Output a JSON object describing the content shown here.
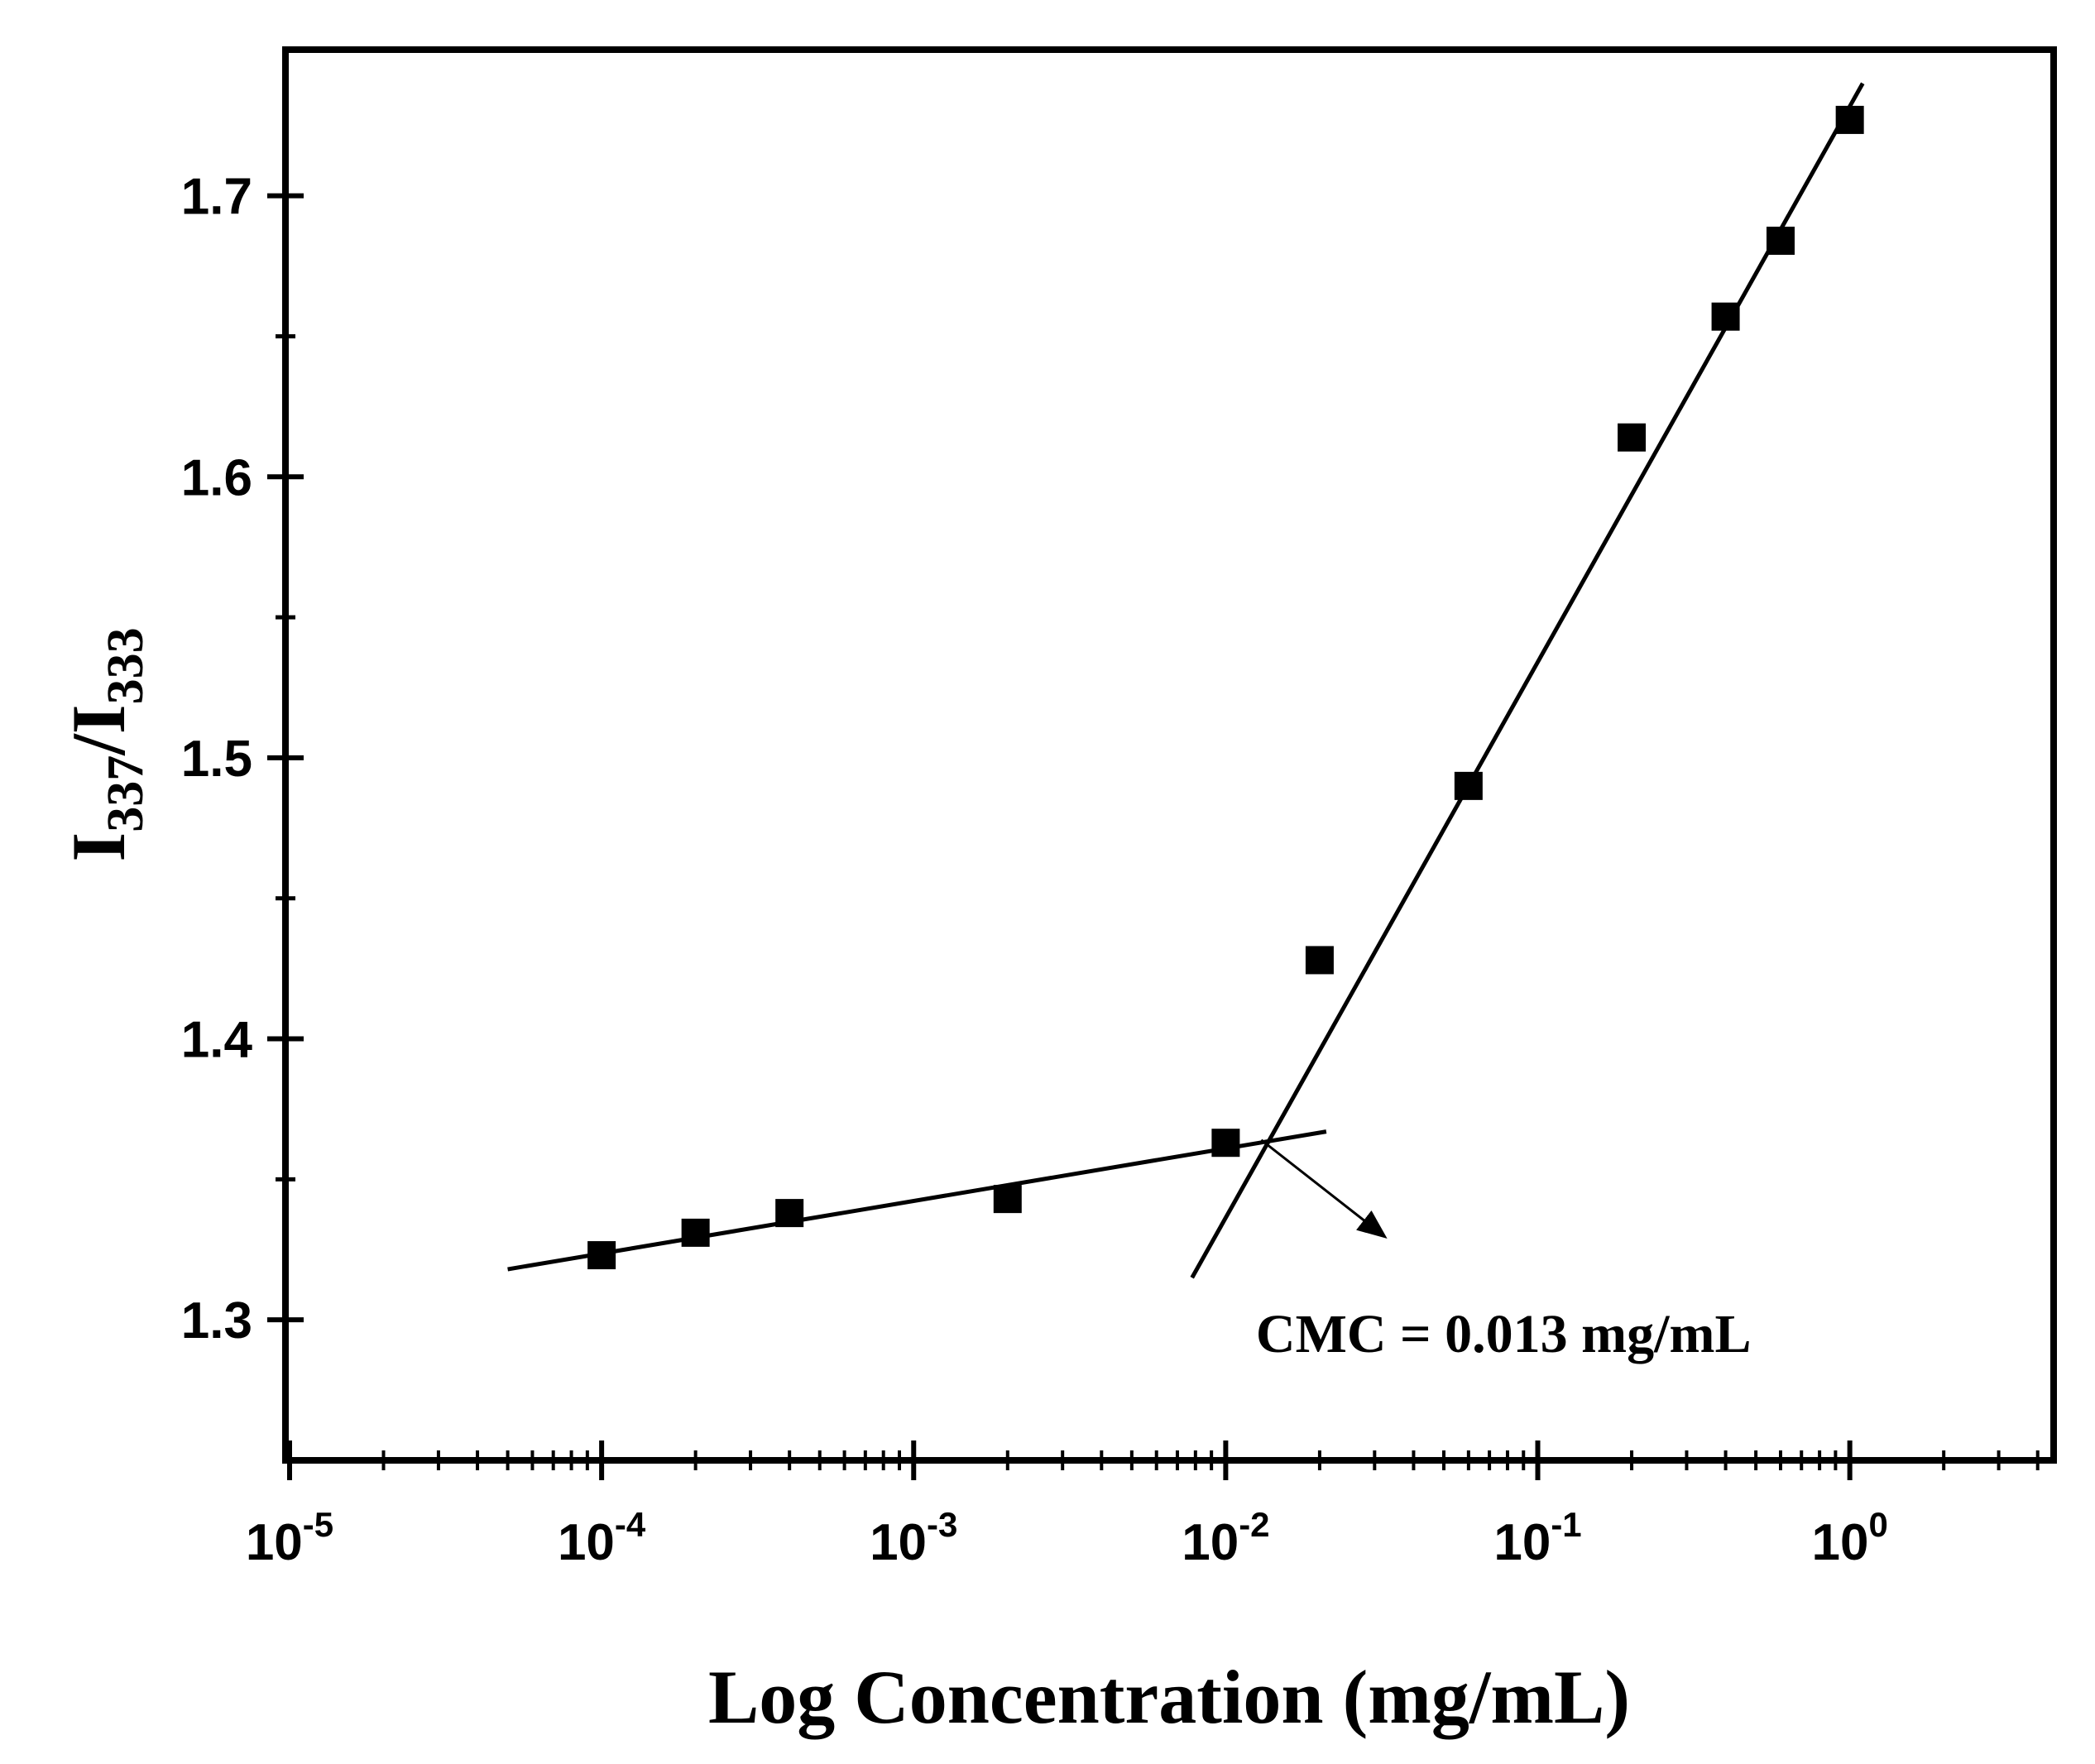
{
  "chart_data": {
    "type": "scatter",
    "xscale": "log",
    "xlim": [
      9.7e-06,
      4.5
    ],
    "ylim": [
      1.25,
      1.752
    ],
    "xlabel": "Log Concentration (mg/mL)",
    "ylabel": {
      "base": "I",
      "sub1": "337",
      "sep": "/I",
      "sub2": "333"
    },
    "xticks": [
      {
        "value": 1e-05,
        "base": "10",
        "exp": "-5"
      },
      {
        "value": 0.0001,
        "base": "10",
        "exp": "-4"
      },
      {
        "value": 0.001,
        "base": "10",
        "exp": "-3"
      },
      {
        "value": 0.01,
        "base": "10",
        "exp": "-2"
      },
      {
        "value": 0.1,
        "base": "10",
        "exp": "-1"
      },
      {
        "value": 1,
        "base": "10",
        "exp": "0"
      }
    ],
    "yticks": [
      {
        "value": 1.3,
        "label": "1.3"
      },
      {
        "value": 1.4,
        "label": "1.4"
      },
      {
        "value": 1.5,
        "label": "1.5"
      },
      {
        "value": 1.6,
        "label": "1.6"
      },
      {
        "value": 1.7,
        "label": "1.7"
      }
    ],
    "series": [
      {
        "name": "data",
        "marker": "square",
        "points": [
          {
            "x": 0.0001,
            "y": 1.323
          },
          {
            "x": 0.0002,
            "y": 1.331
          },
          {
            "x": 0.0004,
            "y": 1.338
          },
          {
            "x": 0.002,
            "y": 1.343
          },
          {
            "x": 0.01,
            "y": 1.363
          },
          {
            "x": 0.02,
            "y": 1.428
          },
          {
            "x": 0.06,
            "y": 1.49
          },
          {
            "x": 0.2,
            "y": 1.614
          },
          {
            "x": 0.4,
            "y": 1.657
          },
          {
            "x": 0.6,
            "y": 1.684
          },
          {
            "x": 1.0,
            "y": 1.727
          }
        ]
      }
    ],
    "fit_lines": [
      {
        "name": "fit-low",
        "from": {
          "x": 5e-05,
          "y": 1.318
        },
        "to": {
          "x": 0.021,
          "y": 1.367
        }
      },
      {
        "name": "fit-high",
        "from": {
          "x": 0.0078,
          "y": 1.315
        },
        "to": {
          "x": 1.1,
          "y": 1.74
        }
      }
    ],
    "annotation": {
      "text": "CMC = 0.013 mg/mL",
      "arrow_from": {
        "x": 0.013,
        "y": 1.364
      },
      "arrow_to": {
        "x": 0.032,
        "y": 1.33
      },
      "text_at": {
        "x": 0.0125,
        "y": 1.295
      }
    }
  }
}
